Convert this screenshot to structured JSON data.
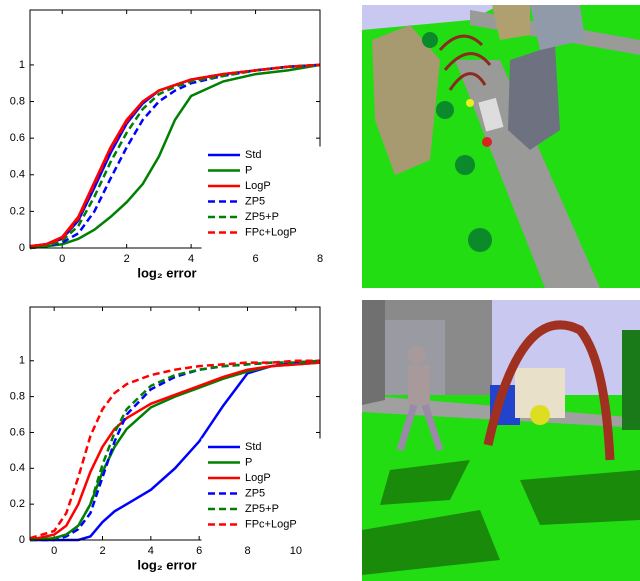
{
  "chart_data": [
    {
      "type": "line",
      "xlabel": "log₂ error",
      "legend": "lower right",
      "grid": false,
      "xlim": [
        -1,
        8
      ],
      "xticks": [
        0,
        2,
        4,
        6,
        8
      ],
      "ylim": [
        0,
        1.3
      ],
      "yticks": [
        0,
        0.2,
        0.4,
        0.6,
        0.8,
        1
      ],
      "x": [
        -1,
        -0.5,
        0,
        0.5,
        1,
        1.5,
        2,
        2.5,
        3,
        3.5,
        4,
        5,
        6,
        7,
        8
      ],
      "series": [
        {
          "name": "Std",
          "color": "#0000ff",
          "dash": false,
          "values": [
            0.01,
            0.02,
            0.05,
            0.15,
            0.33,
            0.52,
            0.68,
            0.79,
            0.86,
            0.89,
            0.92,
            0.95,
            0.97,
            0.99,
            1
          ]
        },
        {
          "name": "P",
          "color": "#008000",
          "dash": false,
          "values": [
            0,
            0.01,
            0.02,
            0.05,
            0.1,
            0.17,
            0.25,
            0.35,
            0.5,
            0.7,
            0.83,
            0.91,
            0.95,
            0.97,
            1
          ]
        },
        {
          "name": "LogP",
          "color": "#ff0000",
          "dash": false,
          "values": [
            0.01,
            0.02,
            0.06,
            0.17,
            0.36,
            0.55,
            0.7,
            0.8,
            0.86,
            0.89,
            0.92,
            0.95,
            0.97,
            0.99,
            1
          ]
        },
        {
          "name": "ZP5",
          "color": "#0000ff",
          "dash": true,
          "values": [
            0,
            0.01,
            0.03,
            0.08,
            0.2,
            0.38,
            0.55,
            0.7,
            0.8,
            0.86,
            0.9,
            0.94,
            0.97,
            0.99,
            1
          ]
        },
        {
          "name": "ZP5+P",
          "color": "#008000",
          "dash": true,
          "values": [
            0,
            0.01,
            0.04,
            0.12,
            0.28,
            0.47,
            0.63,
            0.76,
            0.84,
            0.88,
            0.91,
            0.94,
            0.97,
            0.99,
            1
          ]
        },
        {
          "name": "FPc+LogP",
          "color": "#ff0000",
          "dash": true,
          "values": [
            0.01,
            0.02,
            0.05,
            0.16,
            0.35,
            0.54,
            0.69,
            0.8,
            0.86,
            0.89,
            0.92,
            0.95,
            0.97,
            0.99,
            1
          ]
        }
      ]
    },
    {
      "type": "line",
      "xlabel": "log₂ error",
      "legend": "lower right",
      "grid": false,
      "xlim": [
        -1,
        11
      ],
      "xticks": [
        0,
        2,
        4,
        6,
        8,
        10
      ],
      "ylim": [
        0,
        1.3
      ],
      "yticks": [
        0,
        0.2,
        0.4,
        0.6,
        0.8,
        1
      ],
      "x": [
        -1,
        0,
        0.5,
        1,
        1.5,
        2,
        2.5,
        3,
        4,
        5,
        6,
        7,
        8,
        9,
        10,
        11
      ],
      "series": [
        {
          "name": "Std",
          "color": "#0000ff",
          "dash": false,
          "values": [
            0,
            0,
            0,
            0,
            0.02,
            0.1,
            0.16,
            0.2,
            0.28,
            0.4,
            0.55,
            0.75,
            0.93,
            0.97,
            0.99,
            1
          ]
        },
        {
          "name": "P",
          "color": "#008000",
          "dash": false,
          "values": [
            0,
            0.01,
            0.03,
            0.08,
            0.2,
            0.38,
            0.52,
            0.62,
            0.74,
            0.8,
            0.85,
            0.9,
            0.94,
            0.97,
            0.98,
            0.99
          ]
        },
        {
          "name": "LogP",
          "color": "#ff0000",
          "dash": false,
          "values": [
            0,
            0.03,
            0.08,
            0.2,
            0.38,
            0.52,
            0.62,
            0.68,
            0.76,
            0.81,
            0.86,
            0.91,
            0.95,
            0.97,
            0.98,
            0.99
          ]
        },
        {
          "name": "ZP5",
          "color": "#0000ff",
          "dash": true,
          "values": [
            0,
            0,
            0.02,
            0.06,
            0.15,
            0.35,
            0.55,
            0.7,
            0.84,
            0.91,
            0.95,
            0.97,
            0.98,
            0.99,
            0.99,
            1
          ]
        },
        {
          "name": "ZP5+P",
          "color": "#008000",
          "dash": true,
          "values": [
            0,
            0.01,
            0.03,
            0.08,
            0.2,
            0.42,
            0.6,
            0.73,
            0.86,
            0.92,
            0.95,
            0.97,
            0.98,
            0.99,
            0.99,
            1
          ]
        },
        {
          "name": "FPc+LogP",
          "color": "#ff0000",
          "dash": true,
          "values": [
            0.01,
            0.05,
            0.15,
            0.35,
            0.58,
            0.73,
            0.82,
            0.87,
            0.92,
            0.95,
            0.97,
            0.98,
            0.99,
            0.99,
            1,
            1
          ]
        }
      ]
    }
  ]
}
